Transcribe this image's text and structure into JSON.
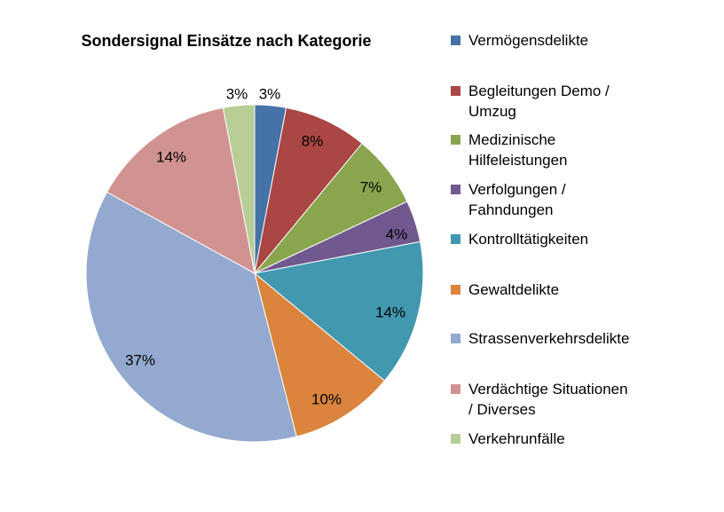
{
  "chart_data": {
    "type": "pie",
    "title": "Sondersignal Einsätze nach Kategorie",
    "categories": [
      "Vermögensdelikte",
      "Begleitungen Demo / Umzug",
      "Medizinische Hilfeleistungen",
      "Verfolgungen / Fahndungen",
      "Kontrolltätigkeiten",
      "Gewaltdelikte",
      "Strassenverkehrsdelikte",
      "Verdächtige Situationen / Diverses",
      "Verkehrunfälle"
    ],
    "legend_lines": [
      [
        "Vermögensdelikte"
      ],
      [
        "Begleitungen Demo /",
        "Umzug"
      ],
      [
        "Medizinische",
        "Hilfeleistungen"
      ],
      [
        "Verfolgungen /",
        "Fahndungen"
      ],
      [
        "Kontrolltätigkeiten"
      ],
      [
        "Gewaltdelikte"
      ],
      [
        "Strassenverkehrsdelikte"
      ],
      [
        "Verdächtige Situationen",
        "/ Diverses"
      ],
      [
        "Verkehrunfälle"
      ]
    ],
    "values": [
      3,
      8,
      7,
      4,
      14,
      10,
      37,
      14,
      3
    ],
    "labels": [
      "3%",
      "8%",
      "7%",
      "4%",
      "14%",
      "10%",
      "37%",
      "14%",
      "3%"
    ],
    "colors": [
      "#4572a7",
      "#aa4643",
      "#89a54e",
      "#71588f",
      "#4198af",
      "#db843d",
      "#93a9cf",
      "#d19392",
      "#b9cd96"
    ],
    "legend_position": "right"
  }
}
